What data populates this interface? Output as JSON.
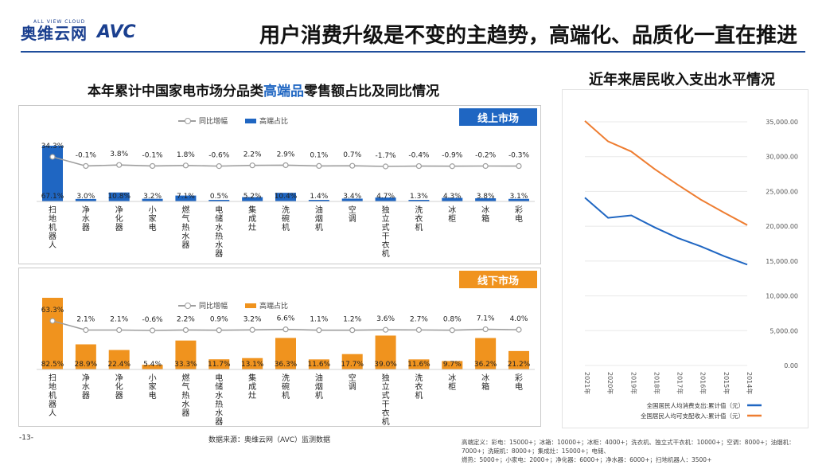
{
  "header": {
    "brand_cn": "奥维云网",
    "brand_en": "ALL VIEW CLOUD",
    "brand_logo": "AVC",
    "main_title": "用户消费升级是不变的主趋势，高端化、品质化一直在推进"
  },
  "left_title": {
    "prefix": "本年累计中国家电市场分品类",
    "highlight": "高端品",
    "suffix": "零售额占比及同比情况"
  },
  "right_title": "近年来居民收入支出水平情况",
  "colors": {
    "online": "#1f66c2",
    "offline": "#f0931e",
    "yoy_line": "#9e9e9e",
    "spend_line": "#1f66c2",
    "income_line": "#ee7d31"
  },
  "online_tag": "线上市场",
  "offline_tag": "线下市场",
  "legend": {
    "share": "高端占比",
    "yoy": "同比增幅"
  },
  "chart_data": [
    {
      "type": "bar",
      "title": "线上市场",
      "categories": [
        "彩电",
        "冰箱",
        "冰柜",
        "洗衣机",
        "独立式干衣机",
        "空调",
        "油烟机",
        "洗碗机",
        "集成灶",
        "电储水热水器",
        "燃气热水器",
        "小家电",
        "净化器",
        "净水器",
        "扫地机器人"
      ],
      "series": [
        {
          "name": "高端占比",
          "type": "bar",
          "values": [
            3.1,
            3.8,
            4.3,
            1.3,
            4.7,
            3.4,
            1.4,
            10.4,
            5.2,
            0.5,
            7.1,
            3.2,
            10.8,
            3.0,
            67.1
          ],
          "labels": [
            "3.1%",
            "3.8%",
            "4.3%",
            "1.3%",
            "4.7%",
            "3.4%",
            "1.4%",
            "10.4%",
            "5.2%",
            "0.5%",
            "7.1%",
            "3.2%",
            "10.8%",
            "3.0%",
            "67.1%"
          ]
        },
        {
          "name": "同比增幅",
          "type": "line",
          "values": [
            -0.3,
            -0.2,
            -0.9,
            -0.4,
            -1.7,
            0.7,
            0.1,
            2.9,
            2.2,
            -0.6,
            1.8,
            -0.1,
            3.8,
            -0.1,
            34.3
          ],
          "labels": [
            "-0.3%",
            "-0.2%",
            "-0.9%",
            "-0.4%",
            "-1.7%",
            "0.7%",
            "0.1%",
            "2.9%",
            "2.2%",
            "-0.6%",
            "1.8%",
            "-0.1%",
            "3.8%",
            "-0.1%",
            "34.3%"
          ]
        }
      ]
    },
    {
      "type": "bar",
      "title": "线下市场",
      "categories": [
        "彩电",
        "冰箱",
        "冰柜",
        "洗衣机",
        "独立式干衣机",
        "空调",
        "油烟机",
        "洗碗机",
        "集成灶",
        "电储水热水器",
        "燃气热水器",
        "小家电",
        "净化器",
        "净水器",
        "扫地机器人"
      ],
      "series": [
        {
          "name": "高端占比",
          "type": "bar",
          "values": [
            21.2,
            36.2,
            9.7,
            11.6,
            39.0,
            17.7,
            11.6,
            36.3,
            13.1,
            11.7,
            33.3,
            5.4,
            22.4,
            28.9,
            82.5
          ],
          "labels": [
            "21.2%",
            "36.2%",
            "9.7%",
            "11.6%",
            "39.0%",
            "17.7%",
            "11.6%",
            "36.3%",
            "13.1%",
            "11.7%",
            "33.3%",
            "5.4%",
            "22.4%",
            "28.9%",
            "82.5%"
          ]
        },
        {
          "name": "同比增幅",
          "type": "line",
          "values": [
            4.0,
            7.1,
            0.8,
            2.7,
            3.6,
            1.2,
            1.1,
            6.6,
            3.2,
            0.9,
            2.2,
            -0.6,
            2.1,
            2.1,
            63.3
          ],
          "labels": [
            "4.0%",
            "7.1%",
            "0.8%",
            "2.7%",
            "3.6%",
            "1.2%",
            "1.1%",
            "6.6%",
            "3.2%",
            "0.9%",
            "2.2%",
            "-0.6%",
            "2.1%",
            "2.1%",
            "63.3%"
          ]
        }
      ]
    },
    {
      "type": "line",
      "title": "近年来居民收入支出水平情况",
      "x": [
        "2014年",
        "2015年",
        "2016年",
        "2017年",
        "2018年",
        "2019年",
        "2020年",
        "2021年"
      ],
      "ylim": [
        0,
        35000
      ],
      "yticks": [
        "0.00",
        "5,000.00",
        "10,000.00",
        "15,000.00",
        "20,000.00",
        "25,000.00",
        "30,000.00",
        "35,000.00"
      ],
      "series": [
        {
          "name": "全国居民人均消费支出:累计值（元）",
          "values": [
            14491,
            15712,
            17111,
            18322,
            19853,
            21559,
            21210,
            24100
          ]
        },
        {
          "name": "全国居民人均可支配收入:累计值（元）",
          "values": [
            20167,
            21966,
            23821,
            25974,
            28228,
            30733,
            32189,
            35128
          ]
        }
      ]
    }
  ],
  "footnote": "-13-",
  "source": "数据来源：奥维云网（AVC）监测数据",
  "notes_line1": "高端定义：彩电：15000+；冰箱：10000+；冰柜：4000+；洗衣机、独立式干衣机：10000+；空调：8000+；油烟机：7000+；洗碗机：8000+；集成灶：15000+；电储、",
  "notes_line2": "燃热：5000+；小家电：2000+；净化器：6000+；净水器：6000+；扫地机器人：3500+"
}
